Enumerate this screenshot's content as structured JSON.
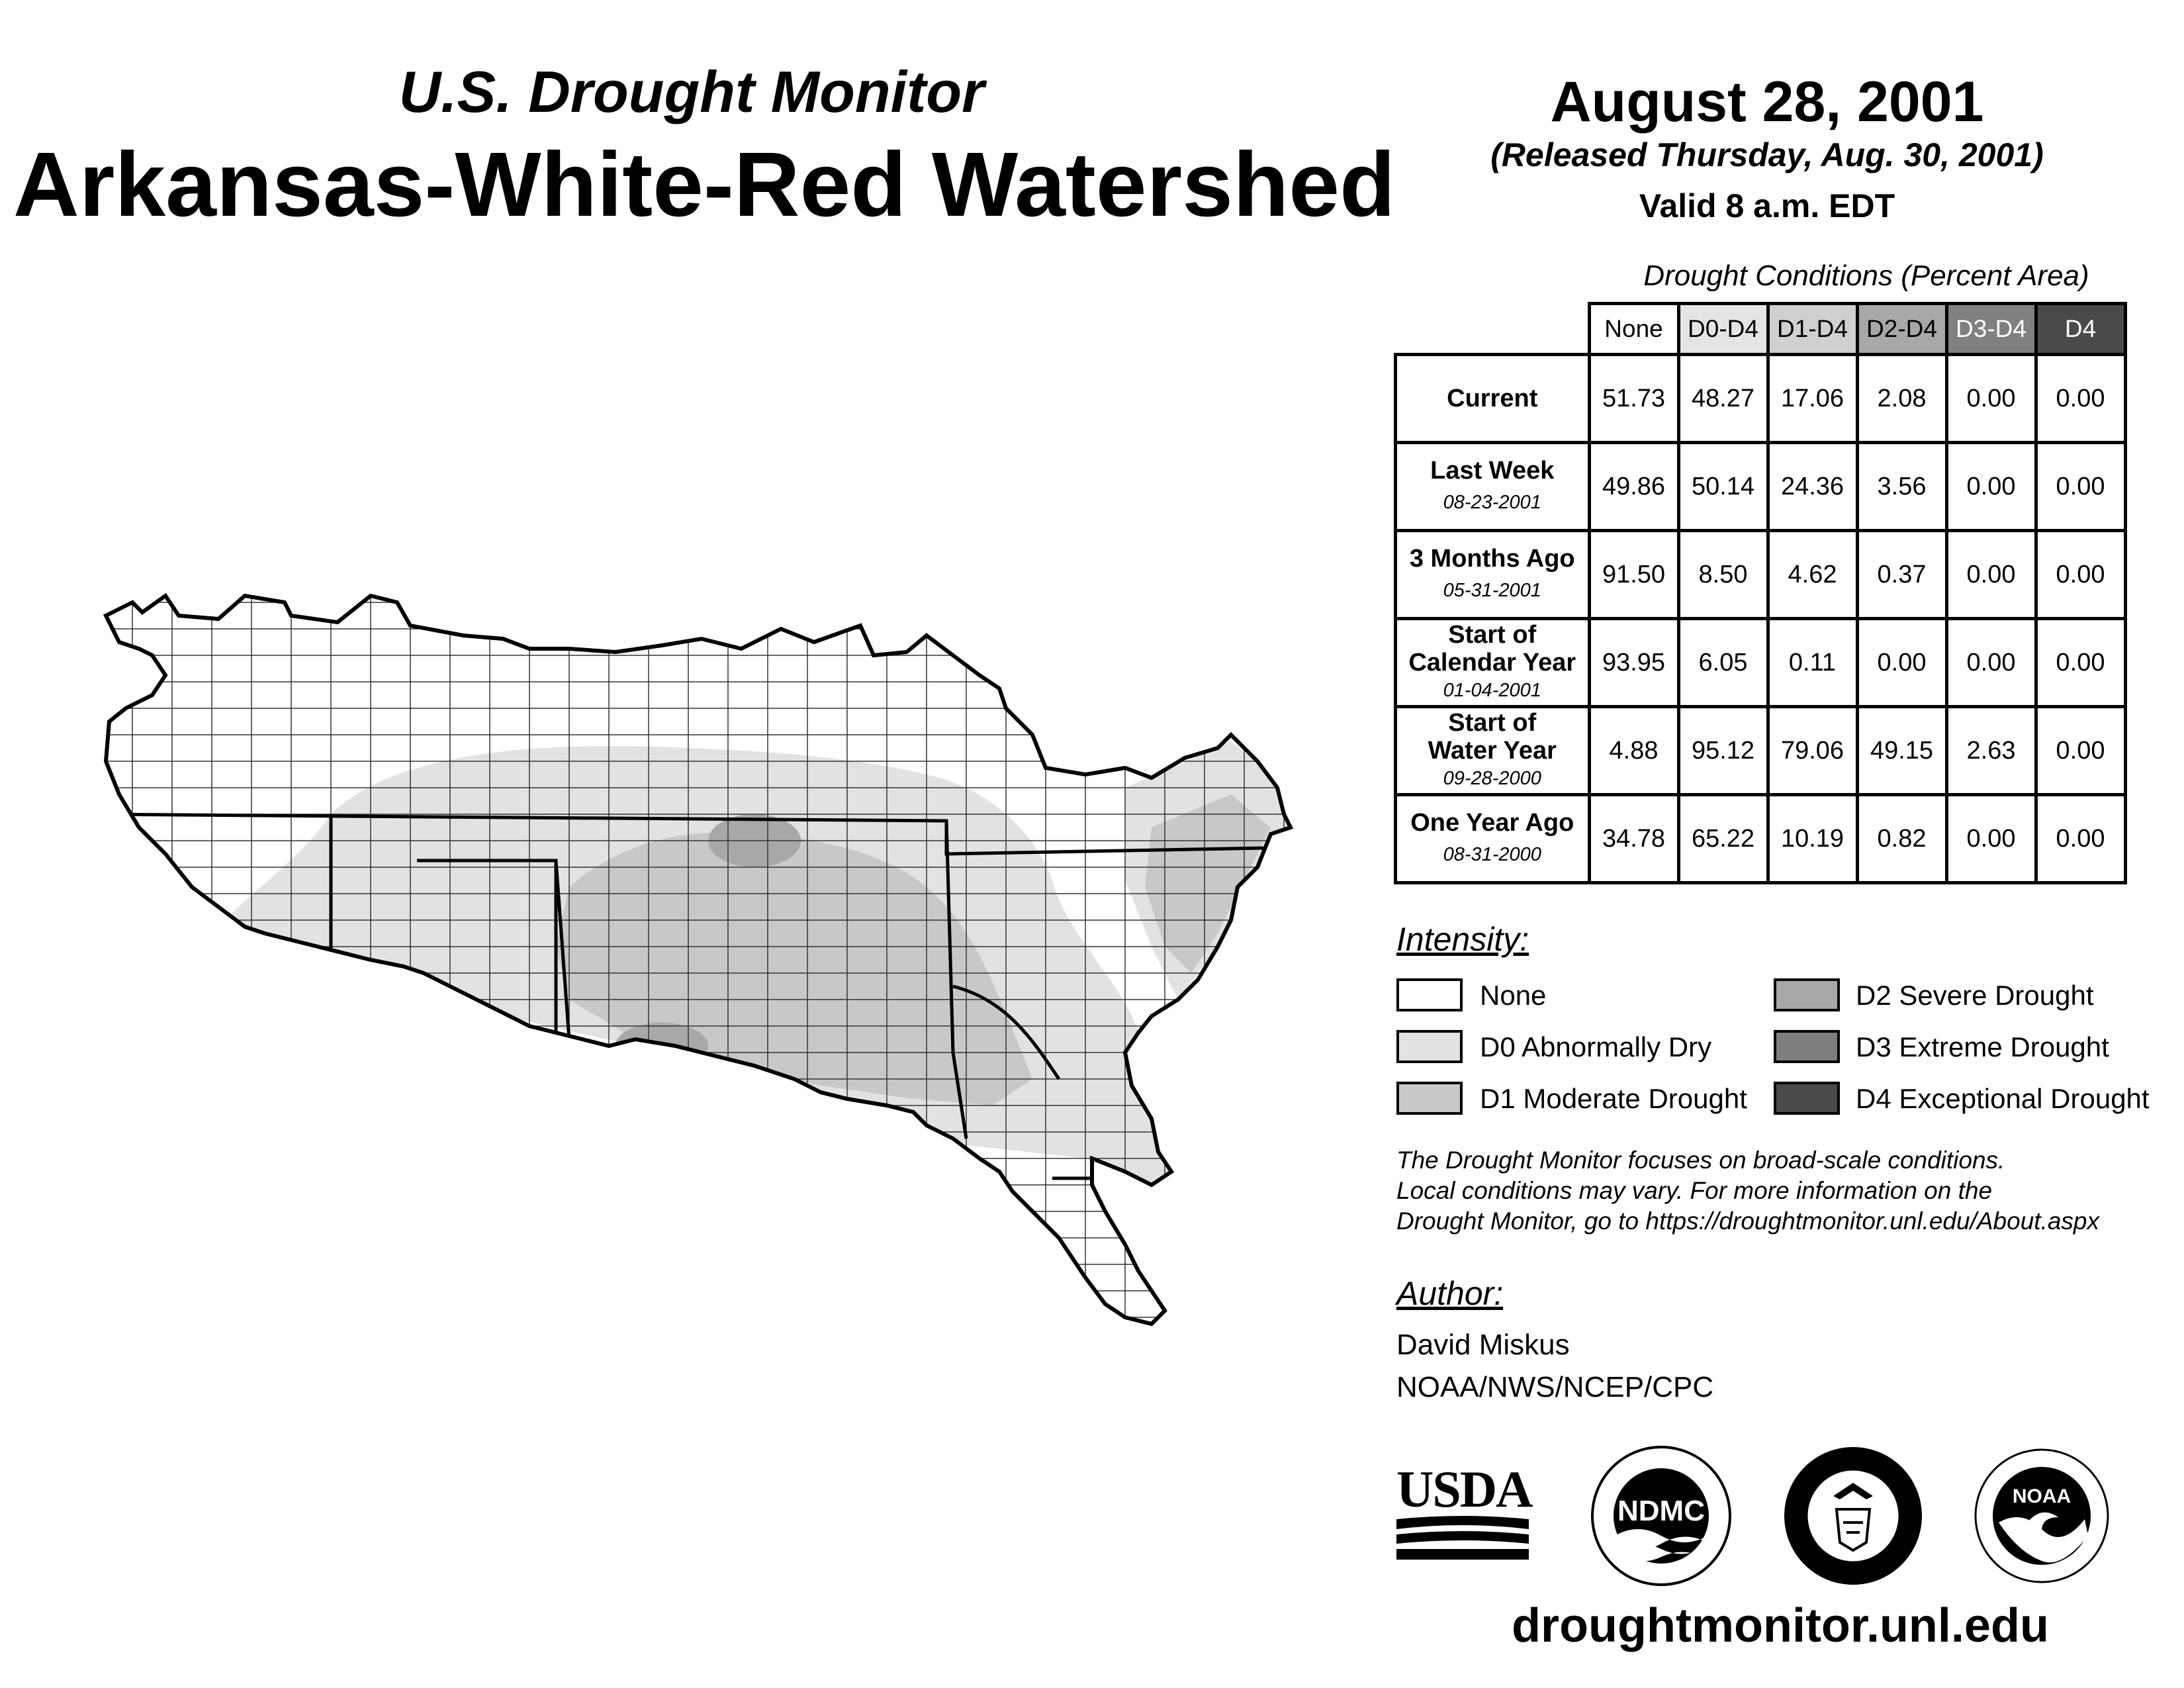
{
  "header": {
    "subtitle": "U.S. Drought Monitor",
    "title": "Arkansas-White-Red Watershed",
    "date": "August 28, 2001",
    "released": "(Released Thursday, Aug. 30, 2001)",
    "valid": "Valid 8 a.m. EDT"
  },
  "table": {
    "caption": "Drought Conditions (Percent Area)",
    "columns": [
      "None",
      "D0-D4",
      "D1-D4",
      "D2-D4",
      "D3-D4",
      "D4"
    ],
    "rows": [
      {
        "label": "Current",
        "date": "",
        "values": [
          "51.73",
          "48.27",
          "17.06",
          "2.08",
          "0.00",
          "0.00"
        ]
      },
      {
        "label": "Last Week",
        "date": "08-23-2001",
        "values": [
          "49.86",
          "50.14",
          "24.36",
          "3.56",
          "0.00",
          "0.00"
        ]
      },
      {
        "label": "3 Months Ago",
        "date": "05-31-2001",
        "values": [
          "91.50",
          "8.50",
          "4.62",
          "0.37",
          "0.00",
          "0.00"
        ]
      },
      {
        "label": "Start of Calendar Year",
        "date": "01-04-2001",
        "values": [
          "93.95",
          "6.05",
          "0.11",
          "0.00",
          "0.00",
          "0.00"
        ]
      },
      {
        "label": "Start of Water Year",
        "date": "09-28-2000",
        "values": [
          "4.88",
          "95.12",
          "79.06",
          "49.15",
          "2.63",
          "0.00"
        ]
      },
      {
        "label": "One Year Ago",
        "date": "08-31-2000",
        "values": [
          "34.78",
          "65.22",
          "10.19",
          "0.82",
          "0.00",
          "0.00"
        ]
      }
    ]
  },
  "legend": {
    "title": "Intensity:",
    "items": [
      {
        "label": "None",
        "color": "#ffffff"
      },
      {
        "label": "D0 Abnormally Dry",
        "color": "#e2e2e2"
      },
      {
        "label": "D1 Moderate Drought",
        "color": "#c8c8c8"
      },
      {
        "label": "D2 Severe Drought",
        "color": "#a8a8a8"
      },
      {
        "label": "D3 Extreme Drought",
        "color": "#7e7e7e"
      },
      {
        "label": "D4 Exceptional Drought",
        "color": "#4a4a4a"
      }
    ]
  },
  "note": {
    "line1": "The Drought Monitor focuses on broad-scale conditions.",
    "line2": "Local conditions may vary. For more information on the",
    "line3": "Drought Monitor, go to https://droughtmonitor.unl.edu/About.aspx"
  },
  "author": {
    "heading": "Author:",
    "name": "David Miskus",
    "org": "NOAA/NWS/NCEP/CPC"
  },
  "logos": {
    "usda": "USDA",
    "ndmc": "NDMC",
    "noaa": "NOAA"
  },
  "footer_url": "droughtmonitor.unl.edu",
  "colors": {
    "header_d1": "#d0d0d0",
    "header_d2": "#a8a8a8",
    "header_d3": "#808080",
    "header_d4": "#4a4a4a",
    "header_d0": "#e4e4e4"
  }
}
